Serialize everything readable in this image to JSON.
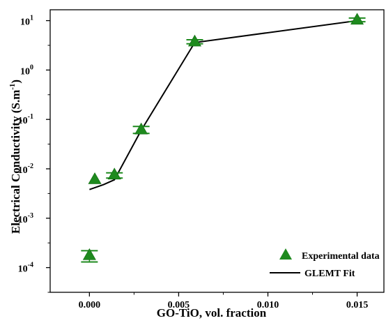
{
  "chart_data": {
    "type": "scatter",
    "xlabel": "GO-TiO, vol. fraction",
    "ylabel_main": "Electrical Conductivity (S.m",
    "ylabel_sup": "-1",
    "ylabel_close": ")",
    "xlim": [
      -0.0022,
      0.0165
    ],
    "ylim_log10": [
      -4.5,
      1.22
    ],
    "y_scale": "log",
    "grid": false,
    "x_ticks": [
      {
        "value": 0.0,
        "label": "0.000"
      },
      {
        "value": 0.005,
        "label": "0.005"
      },
      {
        "value": 0.01,
        "label": "0.010"
      },
      {
        "value": 0.015,
        "label": "0.015"
      }
    ],
    "y_ticks": [
      {
        "exp": -4,
        "base": "10",
        "sup": "-4"
      },
      {
        "exp": -3,
        "base": "10",
        "sup": "-3"
      },
      {
        "exp": -2,
        "base": "10",
        "sup": "-2"
      },
      {
        "exp": -1,
        "base": "10",
        "sup": "-1"
      },
      {
        "exp": 0,
        "base": "10",
        "sup": "0"
      },
      {
        "exp": 1,
        "base": "10",
        "sup": "1"
      }
    ],
    "series": [
      {
        "name": "Experimental data",
        "kind": "markers",
        "marker": "triangle",
        "color": "#1e8a1e",
        "points": [
          {
            "x": 0.0,
            "y": 0.00018,
            "err_low": 0.00013,
            "err_high": 0.00022
          },
          {
            "x": 0.0003,
            "y": 0.0062,
            "err_low": null,
            "err_high": null
          },
          {
            "x": 0.0014,
            "y": 0.0077,
            "err_low": 0.0065,
            "err_high": 0.0083
          },
          {
            "x": 0.0029,
            "y": 0.063,
            "err_low": 0.052,
            "err_high": 0.072
          },
          {
            "x": 0.0059,
            "y": 3.8,
            "err_low": 3.4,
            "err_high": 4.1
          },
          {
            "x": 0.015,
            "y": 10.5,
            "err_low": 9.5,
            "err_high": 11.3
          }
        ]
      },
      {
        "name": "GLEMT Fit",
        "kind": "line",
        "color": "#000000",
        "points": [
          {
            "x": 0.0,
            "y": 0.0038
          },
          {
            "x": 0.0008,
            "y": 0.0048
          },
          {
            "x": 0.0014,
            "y": 0.006
          },
          {
            "x": 0.0029,
            "y": 0.06
          },
          {
            "x": 0.0059,
            "y": 3.6
          },
          {
            "x": 0.015,
            "y": 10.0
          }
        ]
      }
    ],
    "legend_position": "bottom-right"
  }
}
